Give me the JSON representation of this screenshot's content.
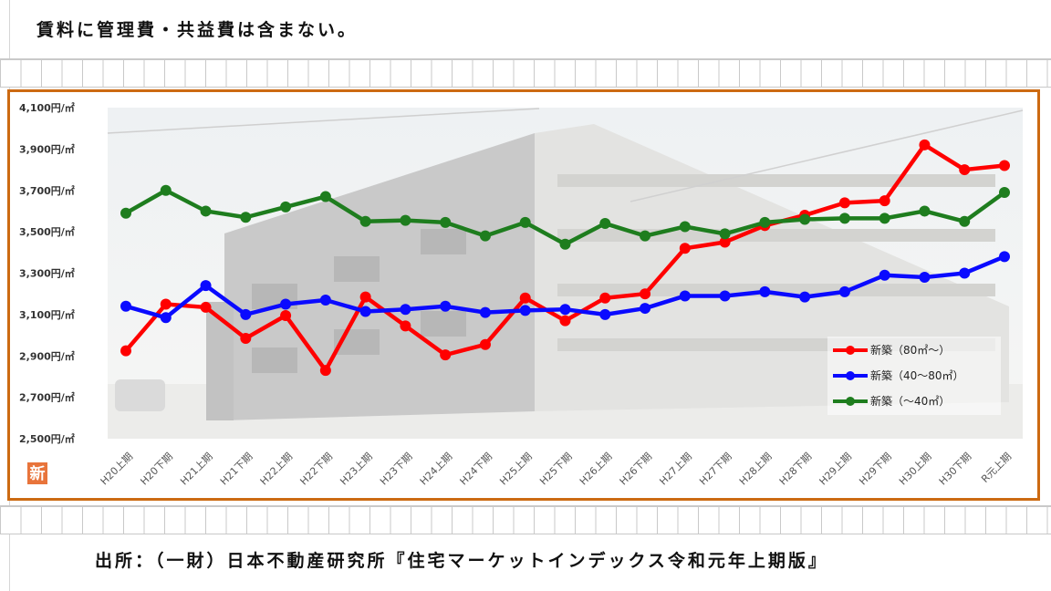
{
  "header_note": "賃料に管理費・共益費は含まない。",
  "source_note": "出所：（一財）日本不動産研究所『住宅マーケットインデックス令和元年上期版』",
  "logo_text": "新",
  "colors": {
    "frame": "#cc6a12",
    "red": "#ff0000",
    "blue": "#0a0aff",
    "green": "#1e7d1e",
    "logo": "#e8743b"
  },
  "chart_data": {
    "type": "line",
    "title": "",
    "xlabel": "",
    "ylabel": "",
    "ylim": [
      2500,
      4100
    ],
    "y_ticks": [
      2500,
      2700,
      2900,
      3100,
      3300,
      3500,
      3700,
      3900,
      4100
    ],
    "y_tick_labels": [
      "2,500円/㎡",
      "2,700円/㎡",
      "2,900円/㎡",
      "3,100円/㎡",
      "3,300円/㎡",
      "3,500円/㎡",
      "3,700円/㎡",
      "3,900円/㎡",
      "4,100円/㎡"
    ],
    "categories": [
      "H20上期",
      "H20下期",
      "H21上期",
      "H21下期",
      "H22上期",
      "H22下期",
      "H23上期",
      "H23下期",
      "H24上期",
      "H24下期",
      "H25上期",
      "H25下期",
      "H26上期",
      "H26下期",
      "H27上期",
      "H27下期",
      "H28上期",
      "H28下期",
      "H29上期",
      "H29下期",
      "H30上期",
      "H30下期",
      "R元上期"
    ],
    "legend_position": "bottom-right",
    "series": [
      {
        "name": "新築（80㎡～）",
        "color": "#ff0000",
        "values": [
          2925,
          3150,
          3135,
          2985,
          3095,
          2830,
          3185,
          3045,
          2905,
          2955,
          3180,
          3070,
          3180,
          3200,
          3420,
          3450,
          3530,
          3580,
          3640,
          3650,
          3920,
          3800,
          3820
        ]
      },
      {
        "name": "新築（40～80㎡）",
        "color": "#0a0aff",
        "values": [
          3140,
          3085,
          3240,
          3100,
          3150,
          3170,
          3115,
          3125,
          3140,
          3110,
          3120,
          3125,
          3100,
          3130,
          3190,
          3190,
          3210,
          3185,
          3210,
          3290,
          3280,
          3300,
          3380
        ]
      },
      {
        "name": "新築（～40㎡）",
        "color": "#1e7d1e",
        "values": [
          3590,
          3700,
          3600,
          3570,
          3620,
          3670,
          3550,
          3555,
          3545,
          3480,
          3545,
          3440,
          3540,
          3480,
          3525,
          3490,
          3545,
          3560,
          3565,
          3565,
          3600,
          3550,
          3690
        ]
      }
    ]
  }
}
